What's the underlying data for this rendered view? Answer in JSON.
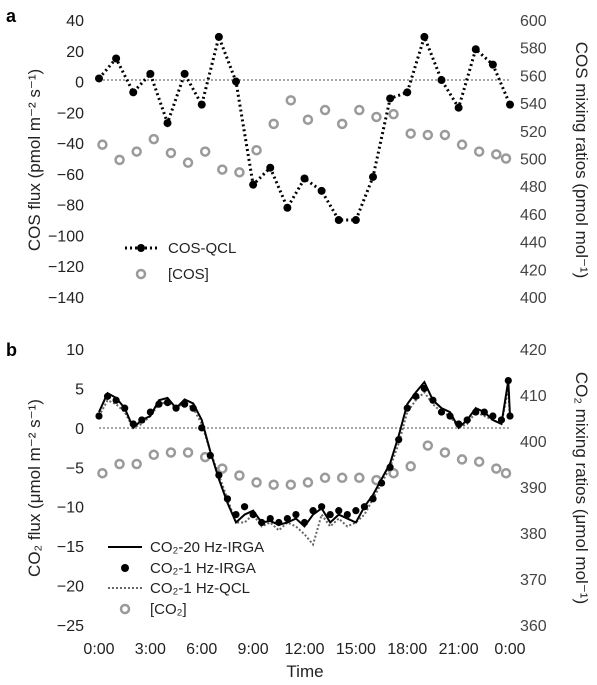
{
  "panels": [
    {
      "letter": "a",
      "left_axis_label": "COS flux (pmol m⁻² s⁻¹)",
      "right_axis_label": "COS mixing ratios (pmol mol⁻¹)",
      "left_ticks": [
        "40",
        "20",
        "0",
        "−20",
        "−40",
        "−60",
        "−80",
        "−100",
        "−120",
        "−140"
      ],
      "right_ticks": [
        "600",
        "580",
        "560",
        "540",
        "520",
        "500",
        "480",
        "460",
        "440",
        "420",
        "400"
      ],
      "legend": [
        "COS-QCL",
        "[COS]"
      ]
    },
    {
      "letter": "b",
      "left_axis_label": "CO₂ flux (μmol m⁻² s⁻¹)",
      "right_axis_label": "CO₂ mixing ratios (μmol mol⁻¹)",
      "left_ticks": [
        "10",
        "5",
        "0",
        "−5",
        "−10",
        "−15",
        "−20",
        "−25"
      ],
      "right_ticks": [
        "420",
        "410",
        "400",
        "390",
        "380",
        "370",
        "360"
      ],
      "legend": [
        "CO₂-20 Hz-IRGA",
        "CO₂-1 Hz-IRGA",
        "CO₂-1 Hz-QCL",
        "[CO₂]"
      ]
    }
  ],
  "x_ticks": [
    "0:00",
    "3:00",
    "6:00",
    "9:00",
    "12:00",
    "15:00",
    "18:00",
    "21:00",
    "0:00"
  ],
  "x_axis_label": "Time",
  "colors": {
    "flux": "#000000",
    "mixing": "#9a9a9a",
    "zero_line": "#888888",
    "qcl_line": "#666666"
  },
  "chart_data": [
    {
      "type": "line",
      "panel": "a",
      "x_unit": "hours",
      "xlim": [
        0,
        24
      ],
      "ylim_left": [
        -140,
        40
      ],
      "ylim_right": [
        400,
        600
      ],
      "grid": false,
      "legend_position": "lower-left",
      "series": [
        {
          "name": "COS-QCL",
          "axis": "left",
          "style": "dotted line with filled circles",
          "x": [
            0,
            1,
            2,
            3,
            4,
            5,
            6,
            7,
            8,
            9,
            10,
            11,
            12,
            13,
            14,
            15,
            16,
            17,
            18,
            19,
            20,
            21,
            22,
            23,
            24
          ],
          "y": [
            2,
            15,
            -7,
            5,
            -27,
            5,
            -15,
            29,
            0,
            -67,
            -56,
            -82,
            -63,
            -71,
            -90,
            -90,
            -62,
            -11,
            -7,
            29,
            1,
            -17,
            21,
            11,
            -15
          ]
        },
        {
          "name": "[COS]",
          "axis": "right",
          "style": "open grey circles",
          "x": [
            0.2,
            1.2,
            2.2,
            3.2,
            4.2,
            5.2,
            6.2,
            7.2,
            8.2,
            9.2,
            10.2,
            11.2,
            12.2,
            13.2,
            14.2,
            15.2,
            16.2,
            17.2,
            18.2,
            19.2,
            20.2,
            21.2,
            22.2,
            23.2,
            24.2
          ],
          "y": [
            510,
            499,
            505,
            514,
            504,
            497,
            505,
            492,
            490,
            506,
            525,
            542,
            528,
            535,
            525,
            535,
            530,
            532,
            518,
            517,
            517,
            510,
            505,
            503,
            500
          ]
        }
      ]
    },
    {
      "type": "line",
      "panel": "b",
      "x_unit": "hours",
      "xlim": [
        0,
        24
      ],
      "ylim_left": [
        -25,
        10
      ],
      "ylim_right": [
        360,
        420
      ],
      "grid": false,
      "legend_position": "lower-left",
      "series": [
        {
          "name": "CO₂-20 Hz-IRGA",
          "axis": "left",
          "style": "solid line",
          "x": [
            0,
            0.5,
            1,
            1.5,
            2,
            2.5,
            3,
            3.5,
            4,
            4.5,
            5,
            5.5,
            6,
            6.5,
            7,
            7.5,
            8,
            8.5,
            9,
            9.5,
            10,
            10.5,
            11,
            11.5,
            12,
            12.5,
            13,
            13.5,
            14,
            14.5,
            15,
            15.5,
            16,
            16.5,
            17,
            17.5,
            18,
            18.5,
            19,
            19.5,
            20,
            20.5,
            21,
            21.5,
            22,
            22.5,
            23,
            23.5,
            23.9,
            24
          ],
          "y": [
            2,
            4.4,
            3.8,
            2.5,
            0,
            1,
            1.5,
            3.5,
            3.8,
            2.5,
            3.6,
            3.1,
            1,
            -3,
            -6.5,
            -9.5,
            -12,
            -11,
            -10.5,
            -12,
            -11.8,
            -12.3,
            -12,
            -11.5,
            -12.5,
            -11,
            -10.2,
            -12,
            -11,
            -11.5,
            -12,
            -10,
            -8.5,
            -6.5,
            -4.5,
            -1,
            3,
            4.5,
            5.8,
            3.5,
            2.5,
            2,
            0,
            1,
            2.5,
            2,
            1,
            0.5,
            6,
            1.5
          ]
        },
        {
          "name": "CO₂-1 Hz-IRGA",
          "axis": "left",
          "style": "filled circles",
          "x": [
            0,
            0.5,
            1,
            1.5,
            2,
            2.5,
            3,
            3.5,
            4,
            4.5,
            5,
            5.5,
            6,
            6.5,
            7,
            7.5,
            8,
            8.5,
            9,
            9.5,
            10,
            10.5,
            11,
            11.5,
            12,
            12.5,
            13,
            13.5,
            14,
            14.5,
            15,
            15.5,
            16,
            16.5,
            17,
            17.5,
            18,
            18.5,
            19,
            19.5,
            20,
            20.5,
            21,
            21.5,
            22,
            22.5,
            23,
            23.5,
            23.9,
            24
          ],
          "y": [
            1.5,
            4,
            3.5,
            2.5,
            0.5,
            1,
            2,
            3,
            3.2,
            2.5,
            3,
            2.5,
            0,
            -3.5,
            -6,
            -9,
            -11,
            -10,
            -11,
            -12,
            -11.5,
            -12,
            -11.5,
            -11,
            -12,
            -10.5,
            -10,
            -11,
            -10.5,
            -11,
            -10.5,
            -10,
            -9,
            -7,
            -5,
            -1.5,
            2.5,
            4,
            5,
            3.5,
            2,
            1.5,
            0.5,
            1,
            2,
            2,
            1.5,
            1,
            6,
            1.5
          ]
        },
        {
          "name": "CO₂-1 Hz-QCL",
          "axis": "left",
          "style": "dotted grey line",
          "x": [
            0,
            0.5,
            1,
            1.5,
            2,
            2.5,
            3,
            3.5,
            4,
            4.5,
            5,
            5.5,
            6,
            6.5,
            7,
            7.5,
            8,
            8.5,
            9,
            9.5,
            10,
            10.5,
            11,
            11.5,
            12,
            12.5,
            13,
            13.5,
            14,
            14.5,
            15,
            15.5,
            16,
            16.5,
            17,
            17.5,
            18,
            18.5,
            19,
            19.5,
            20,
            20.5,
            21,
            21.5,
            22,
            22.5,
            23,
            23.5,
            23.9,
            24
          ],
          "y": [
            1.5,
            3.5,
            3,
            2,
            0,
            0.5,
            1.5,
            3,
            3.3,
            2.5,
            3.2,
            2.5,
            0.5,
            -3,
            -6,
            -9,
            -12,
            -12,
            -11,
            -12.5,
            -12,
            -13,
            -12,
            -12.5,
            -13.5,
            -14.8,
            -11,
            -12.5,
            -11.5,
            -12.5,
            -12,
            -11,
            -9,
            -7,
            -5,
            -2,
            2,
            3.5,
            4.5,
            3,
            2,
            1.5,
            0,
            0.5,
            2,
            1.5,
            1,
            0.5,
            5,
            1
          ]
        },
        {
          "name": "[CO₂]",
          "axis": "right",
          "style": "open grey circles",
          "x": [
            0.2,
            1.2,
            2.2,
            3.2,
            4.2,
            5.2,
            6.2,
            7.2,
            8.2,
            9.2,
            10.2,
            11.2,
            12.2,
            13.2,
            14.2,
            15.2,
            16.2,
            17.2,
            18.2,
            19.2,
            20.2,
            21.2,
            22.2,
            23.2,
            24.2
          ],
          "y": [
            393,
            395,
            395,
            397,
            397.5,
            397.5,
            396.5,
            394,
            392.5,
            391,
            390.5,
            390.5,
            391,
            392,
            392,
            392,
            391.5,
            393,
            394.5,
            399,
            397.5,
            396,
            395.5,
            394,
            393
          ]
        }
      ]
    }
  ]
}
